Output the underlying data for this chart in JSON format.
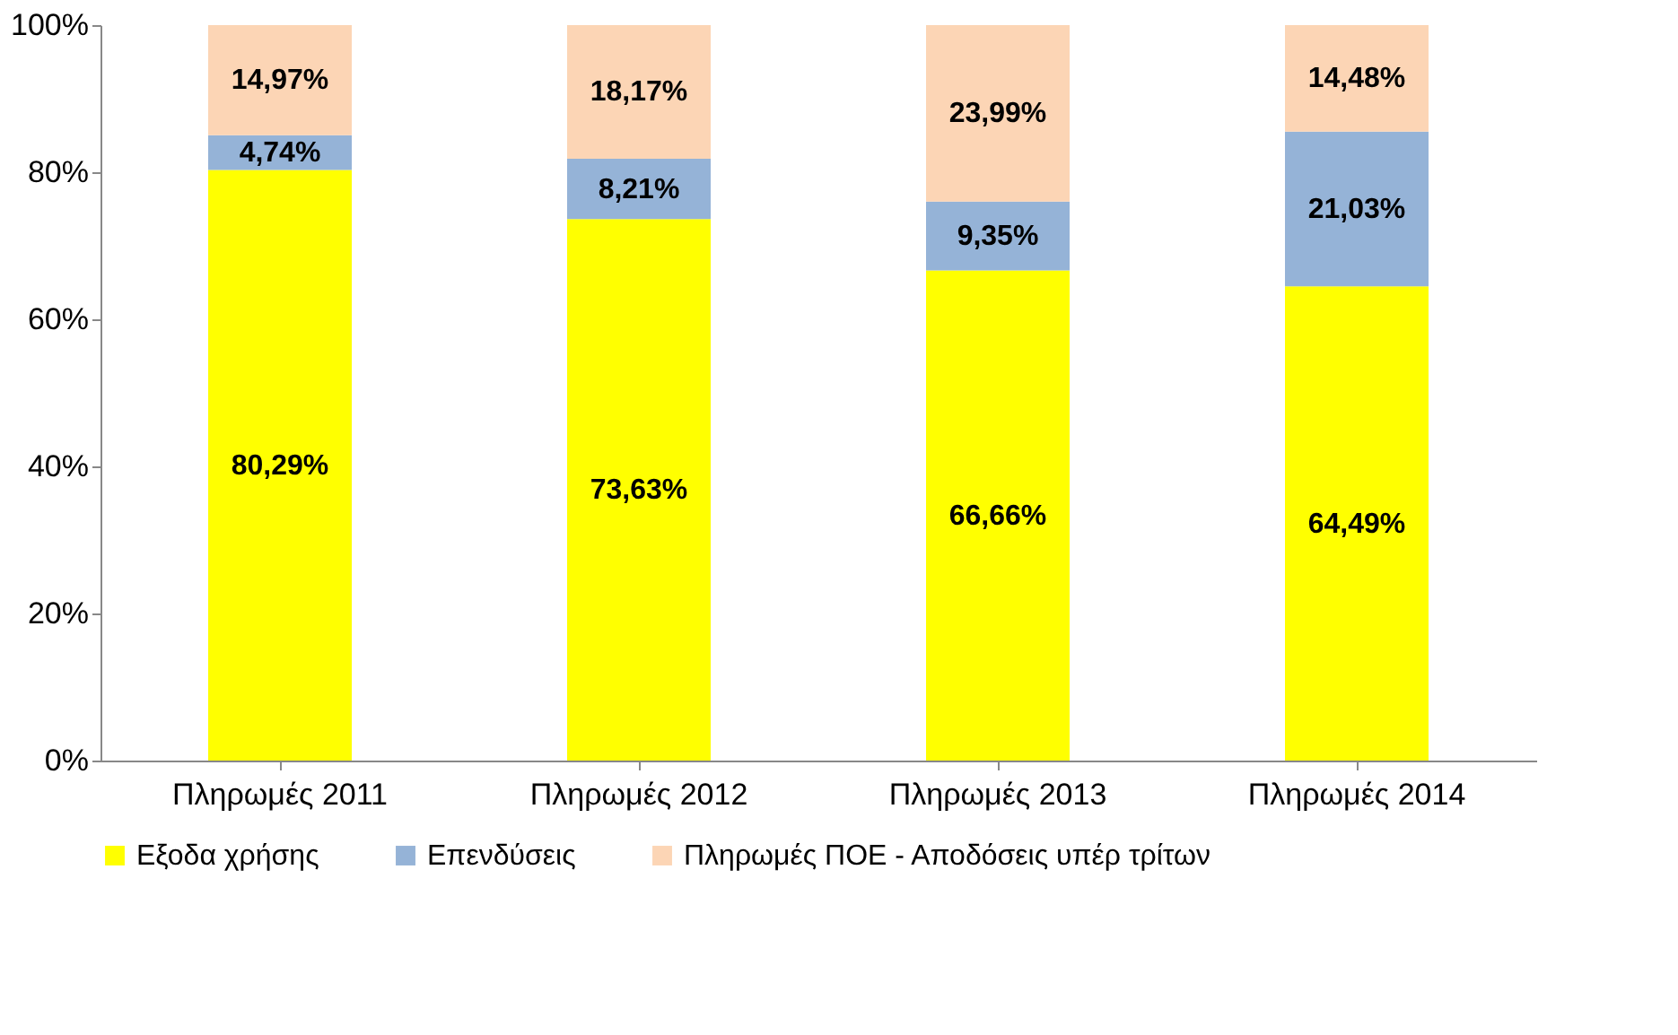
{
  "chart_data": {
    "type": "bar",
    "stacked": true,
    "categories": [
      "Πληρωμές 2011",
      "Πληρωμές 2012",
      "Πληρωμές 2013",
      "Πληρωμές 2014"
    ],
    "series": [
      {
        "name": "Εξοδα χρήσης",
        "color": "#ffff00",
        "values": [
          80.29,
          73.63,
          66.66,
          64.49
        ],
        "value_labels": [
          "80,29%",
          "73,63%",
          "66,66%",
          "64,49%"
        ]
      },
      {
        "name": "Επενδύσεις",
        "color": "#95b3d7",
        "values": [
          4.74,
          8.21,
          9.35,
          21.03
        ],
        "value_labels": [
          "4,74%",
          "8,21%",
          "9,35%",
          "21,03%"
        ]
      },
      {
        "name": "Πληρωμές ΠΟΕ - Αποδόσεις υπέρ τρίτων",
        "color": "#fcd5b5",
        "values": [
          14.97,
          18.17,
          23.99,
          14.48
        ],
        "value_labels": [
          "14,97%",
          "18,17%",
          "23,99%",
          "14,48%"
        ]
      }
    ],
    "ylim": [
      0,
      100
    ],
    "yticks": [
      {
        "value": 0,
        "label": "0%"
      },
      {
        "value": 20,
        "label": "20%"
      },
      {
        "value": 40,
        "label": "40%"
      },
      {
        "value": 60,
        "label": "60%"
      },
      {
        "value": 80,
        "label": "80%"
      },
      {
        "value": 100,
        "label": "100%"
      }
    ],
    "grid": false,
    "legend": "bottom"
  }
}
